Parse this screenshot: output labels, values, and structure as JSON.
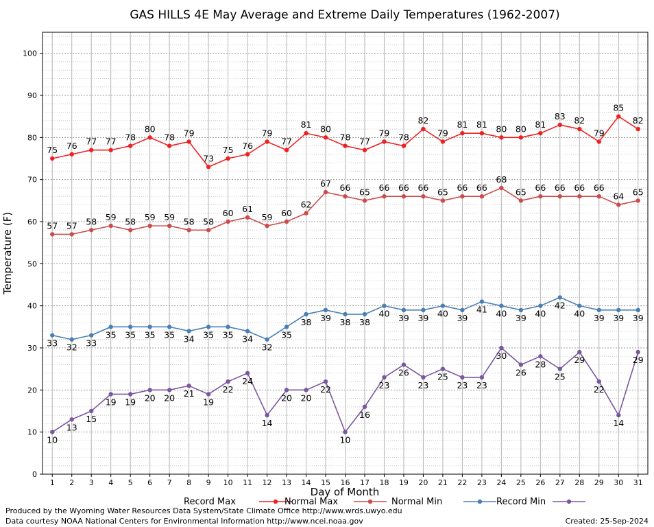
{
  "chart_data": {
    "type": "line",
    "title": "GAS HILLS 4E May Average and Extreme Daily Temperatures (1962-2007)",
    "xlabel": "Day of Month",
    "ylabel": "Temperature (F)",
    "x": [
      1,
      2,
      3,
      4,
      5,
      6,
      7,
      8,
      9,
      10,
      11,
      12,
      13,
      14,
      15,
      16,
      17,
      18,
      19,
      20,
      21,
      22,
      23,
      24,
      25,
      26,
      27,
      28,
      29,
      30,
      31
    ],
    "xlim": [
      0.5,
      31.5
    ],
    "ylim": [
      0,
      105
    ],
    "yticks": [
      0,
      10,
      20,
      30,
      40,
      50,
      60,
      70,
      80,
      90,
      100
    ],
    "grid": true,
    "legend_position": "bottom",
    "series": [
      {
        "name": "Record Max",
        "color": "#ee2222",
        "label_position": "above",
        "values": [
          75,
          76,
          77,
          77,
          78,
          80,
          78,
          79,
          73,
          75,
          76,
          79,
          77,
          81,
          80,
          78,
          77,
          79,
          78,
          82,
          79,
          81,
          81,
          80,
          80,
          81,
          83,
          82,
          79,
          85,
          82
        ]
      },
      {
        "name": "Normal Max",
        "color": "#cc4c4c",
        "label_position": "above",
        "values": [
          57,
          57,
          58,
          59,
          58,
          59,
          59,
          58,
          58,
          60,
          61,
          59,
          60,
          62,
          67,
          66,
          65,
          66,
          66,
          66,
          65,
          66,
          66,
          68,
          65,
          66,
          66,
          66,
          66,
          64,
          65
        ]
      },
      {
        "name": "Normal Min",
        "color": "#4a7fb5",
        "label_position": "below",
        "values": [
          33,
          32,
          33,
          35,
          35,
          35,
          35,
          34,
          35,
          35,
          34,
          32,
          35,
          38,
          39,
          38,
          38,
          40,
          39,
          39,
          40,
          39,
          41,
          40,
          39,
          40,
          42,
          40,
          39,
          39,
          39
        ]
      },
      {
        "name": "Record Min",
        "color": "#7a58a0",
        "label_position": "below",
        "values": [
          10,
          13,
          15,
          19,
          19,
          20,
          20,
          21,
          19,
          22,
          24,
          14,
          20,
          20,
          22,
          10,
          16,
          23,
          26,
          23,
          25,
          23,
          23,
          30,
          26,
          28,
          25,
          29,
          22,
          14,
          29
        ]
      }
    ]
  },
  "footer": {
    "produced_by": "Produced by the Wyoming Water Resources Data System/State Climate Office http://www.wrds.uwyo.edu",
    "data_courtesy": "Data courtesy NOAA National Centers for Environmental Information http://www.ncei.noaa.gov",
    "created": "Created:  25-Sep-2024"
  }
}
